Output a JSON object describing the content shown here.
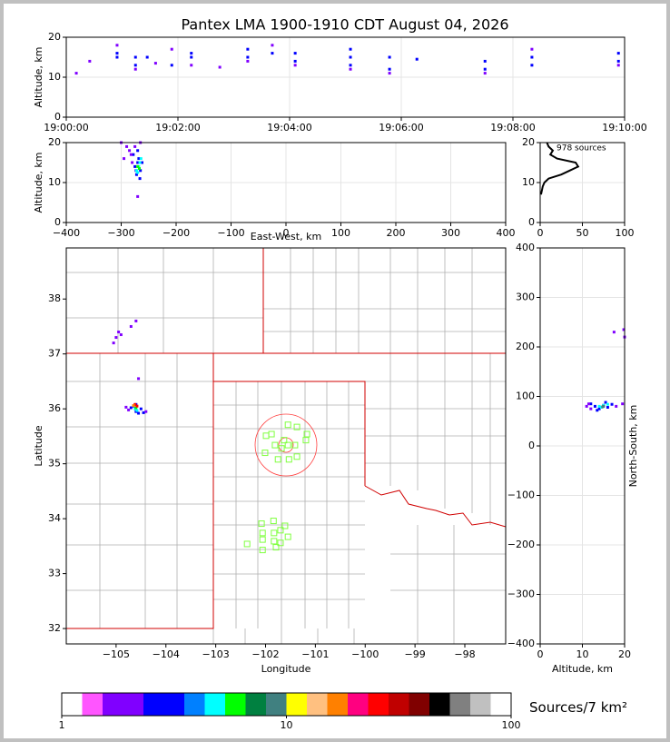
{
  "chart_data": [
    {
      "type": "scatter",
      "title": "Pantex LMA 1900-1910 CDT August 04, 2026",
      "ylabel": "Altitude, km",
      "xlim": [
        0,
        10
      ],
      "xticks": [
        {
          "value": 0,
          "label": "19:00:00"
        },
        {
          "value": 2,
          "label": "19:02:00"
        },
        {
          "value": 4,
          "label": "19:04:00"
        },
        {
          "value": 6,
          "label": "19:06:00"
        },
        {
          "value": 8,
          "label": "19:08:00"
        },
        {
          "value": 10,
          "label": "19:10:00"
        }
      ],
      "ylim": [
        0,
        20
      ],
      "yticks": [
        0,
        10,
        20
      ],
      "grid": true,
      "series": [
        {
          "color": "#0000ff",
          "x": [
            0.91,
            0.91,
            1.24,
            1.24,
            1.45,
            1.89,
            2.24,
            2.24,
            3.25,
            3.25,
            3.69,
            4.1,
            4.1,
            5.09,
            5.09,
            5.09,
            5.79,
            5.79,
            6.28,
            7.5,
            7.5,
            8.34,
            8.34,
            9.89,
            9.89
          ],
          "y": [
            15,
            16,
            13,
            15,
            15,
            13,
            15,
            16,
            15,
            17,
            16,
            14,
            16,
            13,
            15,
            17,
            12,
            15,
            14.5,
            12,
            14,
            13,
            15,
            14,
            16
          ]
        },
        {
          "color": "#8000ff",
          "x": [
            0.18,
            0.42,
            0.91,
            1.24,
            1.6,
            1.89,
            2.24,
            2.75,
            3.25,
            3.69,
            4.1,
            5.09,
            5.79,
            7.5,
            8.34,
            9.89
          ],
          "y": [
            11,
            14,
            18,
            12,
            13.5,
            17,
            13,
            12.5,
            14,
            18,
            13,
            12,
            11,
            11,
            17,
            13
          ]
        }
      ]
    },
    {
      "type": "scatter",
      "xlabel": "East-West, km",
      "ylabel": "Altitude, km",
      "xlim": [
        -400,
        400
      ],
      "xticks": [
        {
          "value": -400,
          "label": "−400"
        },
        {
          "value": -300,
          "label": "−300"
        },
        {
          "value": -200,
          "label": "−200"
        },
        {
          "value": -100,
          "label": "−100"
        },
        0,
        100,
        200,
        300,
        400
      ],
      "ylim": [
        0,
        20
      ],
      "yticks": [
        0,
        10,
        20
      ],
      "grid": true,
      "series": [
        {
          "color": "#0000ff",
          "x": [
            -275,
            -270,
            -268,
            -265,
            -272,
            -262,
            -278,
            -266,
            -270,
            -273
          ],
          "y": [
            14,
            15,
            16,
            13,
            12,
            15,
            17,
            11,
            18,
            13
          ]
        },
        {
          "color": "#8000ff",
          "x": [
            -300,
            -290,
            -282,
            -280,
            -275,
            -285,
            -265,
            -295,
            -270
          ],
          "y": [
            20,
            19,
            17,
            15,
            19,
            18,
            20,
            16,
            6.5
          ]
        },
        {
          "color": "#00ffff",
          "x": [
            -272,
            -268,
            -266,
            -270,
            -264
          ],
          "y": [
            13,
            14,
            15,
            12.5,
            16
          ]
        },
        {
          "color": "#00ff00",
          "x": [
            -270,
            -267
          ],
          "y": [
            14,
            13.5
          ]
        }
      ]
    },
    {
      "type": "line",
      "annotation": "978 sources",
      "color": "#000000",
      "xlim": [
        0,
        100
      ],
      "xticks": [
        0,
        50,
        100
      ],
      "ylim": [
        0,
        20
      ],
      "yticks": [
        0,
        10,
        20
      ],
      "grid": true,
      "x": [
        1,
        2,
        3,
        5,
        10,
        25,
        35,
        45,
        42,
        20,
        12,
        15,
        10,
        8
      ],
      "y": [
        7,
        8,
        9,
        10,
        11,
        12,
        13,
        14,
        15,
        16,
        17,
        18,
        19,
        20
      ]
    },
    {
      "type": "scatter",
      "xlabel": "Longitude",
      "ylabel": "Latitude",
      "xlim": [
        -106,
        -97.18
      ],
      "xticks": [
        {
          "value": -105,
          "label": "−105"
        },
        {
          "value": -104,
          "label": "−104"
        },
        {
          "value": -103,
          "label": "−103"
        },
        {
          "value": -102,
          "label": "−102"
        },
        {
          "value": -101,
          "label": "−101"
        },
        {
          "value": -100,
          "label": "−100"
        },
        {
          "value": -99,
          "label": "−99"
        },
        {
          "value": -98,
          "label": "−98"
        }
      ],
      "ylim": [
        31.72,
        38.93
      ],
      "yticks": [
        32,
        33,
        34,
        35,
        36,
        37,
        38
      ],
      "grid": false,
      "series": [
        {
          "color": "#0000ff",
          "x": [
            -104.7,
            -104.6,
            -104.5,
            -104.55,
            -104.65,
            -104.45,
            -104.6
          ],
          "y": [
            36.02,
            35.95,
            36.0,
            35.92,
            36.05,
            35.93,
            36.08
          ]
        },
        {
          "color": "#8000ff",
          "x": [
            -104.8,
            -104.75,
            -105.0,
            -104.9,
            -104.95,
            -105.05,
            -104.6,
            -104.55,
            -104.7,
            -104.4
          ],
          "y": [
            36.03,
            35.98,
            37.3,
            37.35,
            37.4,
            37.2,
            37.6,
            36.55,
            37.5,
            35.95
          ]
        },
        {
          "color": "#00ffff",
          "x": [
            -104.62,
            -104.58
          ],
          "y": [
            36.0,
            35.97
          ]
        },
        {
          "color": "#00ff00",
          "x": [
            -104.6
          ],
          "y": [
            36.02
          ]
        },
        {
          "color": "#ff0000",
          "x": [
            -104.58,
            -104.62
          ],
          "y": [
            36.05,
            36.08
          ]
        },
        {
          "color": "#ff8000",
          "x": [
            -104.65
          ],
          "y": [
            36.06
          ]
        }
      ],
      "stations": {
        "color": "#80ff40",
        "x": [
          -101.55,
          -101.37,
          -101.99,
          -101.88,
          -101.17,
          -101.63,
          -101.19,
          -101.81,
          -101.55,
          -101.41,
          -101.68,
          -102.01,
          -101.37,
          -101.75,
          -101.53,
          -102.08,
          -101.84,
          -101.61,
          -102.06,
          -101.83,
          -101.7,
          -101.55,
          -102.06,
          -101.83,
          -101.7,
          -101.79,
          -102.06,
          -102.37
        ],
        "y": [
          35.71,
          35.67,
          35.51,
          35.54,
          35.54,
          35.43,
          35.43,
          35.34,
          35.34,
          35.34,
          35.28,
          35.2,
          35.13,
          35.08,
          35.08,
          33.91,
          33.96,
          33.87,
          33.74,
          33.74,
          33.79,
          33.67,
          33.62,
          33.59,
          33.56,
          33.48,
          33.43,
          33.54
        ]
      }
    },
    {
      "type": "scatter",
      "xlabel": "Altitude, km",
      "ylabel": "North-South, km",
      "xlim": [
        0,
        20
      ],
      "xticks": [
        0,
        10,
        20
      ],
      "ylim": [
        -400,
        400
      ],
      "yticks": [
        {
          "value": -400,
          "label": "−400"
        },
        {
          "value": -300,
          "label": "−300"
        },
        {
          "value": -200,
          "label": "−200"
        },
        {
          "value": -100,
          "label": "−100"
        },
        0,
        100,
        200,
        300,
        400
      ],
      "grid": true,
      "series": [
        {
          "color": "#0000ff",
          "x": [
            12,
            13,
            14,
            15,
            16,
            17,
            13.5,
            15.5
          ],
          "y": [
            85,
            80,
            75,
            82,
            78,
            84,
            72,
            88
          ]
        },
        {
          "color": "#8000ff",
          "x": [
            11,
            12,
            18,
            19.5,
            20,
            19.8,
            17.5,
            11.5
          ],
          "y": [
            80,
            75,
            80,
            85,
            220,
            235,
            230,
            85
          ]
        },
        {
          "color": "#00ffff",
          "x": [
            14,
            15,
            14.5,
            16
          ],
          "y": [
            80,
            82,
            78,
            84
          ]
        },
        {
          "color": "#408080",
          "x": [
            15,
            14.8
          ],
          "y": [
            80,
            79
          ]
        }
      ]
    },
    {
      "type": "colorbar",
      "label": "Sources/7 km²",
      "log": true,
      "xlim": [
        1,
        100
      ],
      "xticks": [
        1,
        10,
        100
      ],
      "colors": [
        "#ffffff",
        "#ff55ff",
        "#8000ff",
        "#8000ff",
        "#0000ff",
        "#0000ff",
        "#0080ff",
        "#00ffff",
        "#00ff00",
        "#008040",
        "#408080",
        "#ffff00",
        "#ffc080",
        "#ff8000",
        "#ff0080",
        "#ff0000",
        "#c00000",
        "#800000",
        "#000000",
        "#808080",
        "#c0c0c0",
        "#ffffff"
      ]
    }
  ]
}
